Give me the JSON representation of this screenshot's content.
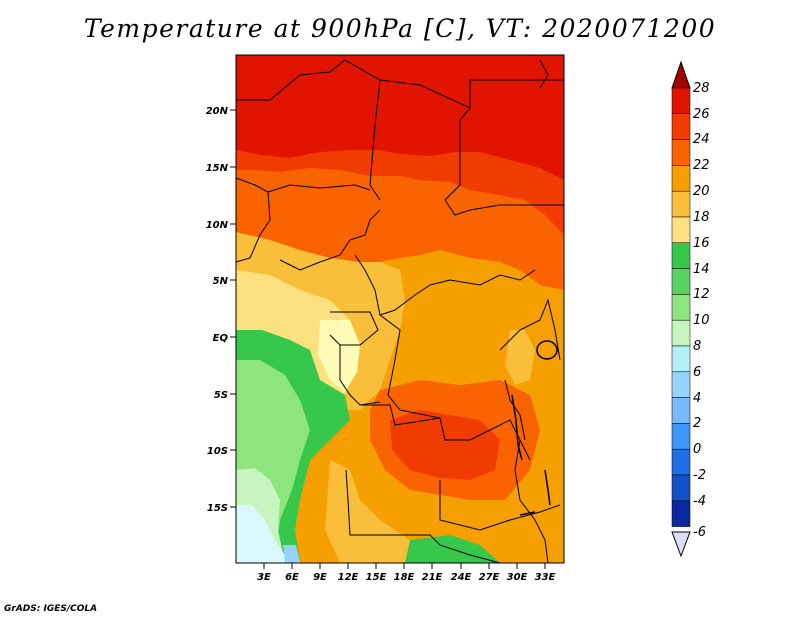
{
  "title": "Temperature at 900hPa [C], VT: 2020071200",
  "credit": "GrADS: IGES/COLA",
  "map": {
    "variable": "Temperature",
    "level": "900hPa",
    "units": "C",
    "valid_time": "2020071200",
    "lat_labels": [
      "20N",
      "15N",
      "10N",
      "5N",
      "EQ",
      "5S",
      "10S",
      "15S"
    ],
    "lon_labels": [
      "3E",
      "6E",
      "9E",
      "12E",
      "15E",
      "18E",
      "21E",
      "24E",
      "27E",
      "30E",
      "33E"
    ]
  },
  "colorbar": {
    "labels": [
      "28",
      "26",
      "24",
      "22",
      "20",
      "18",
      "16",
      "14",
      "12",
      "10",
      "8",
      "6",
      "4",
      "2",
      "0",
      "-2",
      "-4",
      "-6"
    ],
    "colors": [
      "#a50000",
      "#e11400",
      "#f03c00",
      "#fa6400",
      "#f5a000",
      "#f9be3a",
      "#fde080",
      "#fffcb8",
      "#37c84b",
      "#5ad25f",
      "#8ee47d",
      "#c7f5c0",
      "#b4f0fa",
      "#96d2fa",
      "#78b9fa",
      "#3c96f5",
      "#1e6ee6",
      "#1450c8",
      "#0a28a0",
      "#00007a"
    ]
  }
}
